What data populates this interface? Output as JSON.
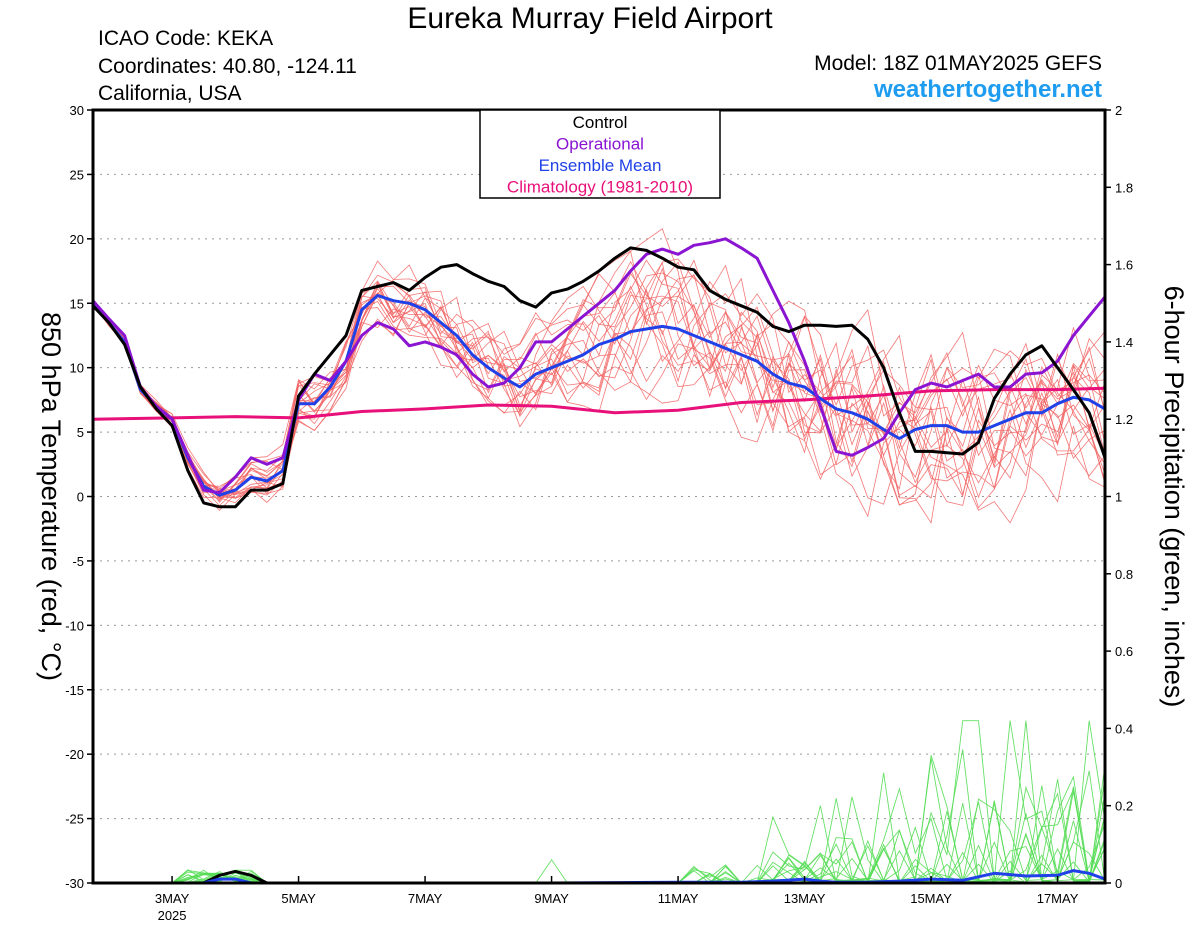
{
  "header": {
    "title": "Eureka Murray Field Airport",
    "icao": "ICAO Code: KEKA",
    "coordinates": "Coordinates: 40.80, -124.11",
    "region": "California, USA",
    "model": "Model: 18Z 01MAY2025 GEFS",
    "site": "weathertogether.net"
  },
  "chart_data": {
    "type": "line",
    "x_unit": "days since 00Z 01MAY2025",
    "x_range": [
      1.75,
      17.75
    ],
    "ylim_left": [
      -30,
      30
    ],
    "ylim_right": [
      0,
      2
    ],
    "ylabel_left": "850 hPa Temperature (red, °C)",
    "ylabel_right": "6-hour Precipitation (green, inches)",
    "grid": true,
    "legend_position": "top-center",
    "left_ticks": [
      "30",
      "25",
      "20",
      "15",
      "10",
      "5",
      "0",
      "-5",
      "-10",
      "-15",
      "-20",
      "-25",
      "-30"
    ],
    "right_ticks": [
      "2",
      "1.8",
      "1.6",
      "1.4",
      "1.2",
      "1",
      "0.8",
      "0.6",
      "0.4",
      "0.2",
      "0"
    ],
    "x_ticks": [
      {
        "day": 3,
        "label": "3MAY",
        "sublabel": "2025"
      },
      {
        "day": 5,
        "label": "5MAY",
        "sublabel": ""
      },
      {
        "day": 7,
        "label": "7MAY",
        "sublabel": ""
      },
      {
        "day": 9,
        "label": "9MAY",
        "sublabel": ""
      },
      {
        "day": 11,
        "label": "11MAY",
        "sublabel": ""
      },
      {
        "day": 13,
        "label": "13MAY",
        "sublabel": ""
      },
      {
        "day": 15,
        "label": "15MAY",
        "sublabel": ""
      },
      {
        "day": 17,
        "label": "17MAY",
        "sublabel": ""
      }
    ],
    "legend": [
      {
        "label": "Control",
        "color": "#000000"
      },
      {
        "label": "Operational",
        "color": "#8a14d2"
      },
      {
        "label": "Ensemble Mean",
        "color": "#2040e8"
      },
      {
        "label": "Climatology (1981-2010)",
        "color": "#e8107a"
      }
    ],
    "colors": {
      "members": "#f26060",
      "precip_members": "#55dd55"
    },
    "series": [
      {
        "name": "Control",
        "color": "#000000",
        "x": [
          1.75,
          2.0,
          2.25,
          2.5,
          2.75,
          3.0,
          3.25,
          3.5,
          3.75,
          4.0,
          4.25,
          4.5,
          4.75,
          5.0,
          5.25,
          5.5,
          5.75,
          6.0,
          6.25,
          6.5,
          6.75,
          7.0,
          7.25,
          7.5,
          7.75,
          8.0,
          8.25,
          8.5,
          8.75,
          9.0,
          9.25,
          9.5,
          9.75,
          10.0,
          10.25,
          10.5,
          10.75,
          11.0,
          11.25,
          11.5,
          11.75,
          12.0,
          12.25,
          12.5,
          12.75,
          13.0,
          13.25,
          13.5,
          13.75,
          14.0,
          14.25,
          14.5,
          14.75,
          15.0,
          15.25,
          15.5,
          15.75,
          16.0,
          16.25,
          16.5,
          16.75,
          17.0,
          17.25,
          17.5,
          17.75
        ],
        "y": [
          14.8,
          13.5,
          11.8,
          8.5,
          6.8,
          5.5,
          2.0,
          -0.5,
          -0.8,
          -0.8,
          0.5,
          0.5,
          1.0,
          7.8,
          9.5,
          11.0,
          12.5,
          16.0,
          16.3,
          16.6,
          16.0,
          17.0,
          17.8,
          18.0,
          17.3,
          16.7,
          16.3,
          15.2,
          14.7,
          15.8,
          16.1,
          16.7,
          17.5,
          18.5,
          19.3,
          19.1,
          18.5,
          17.8,
          17.6,
          16.0,
          15.3,
          14.8,
          14.3,
          13.2,
          12.8,
          13.3,
          13.3,
          13.2,
          13.3,
          12.2,
          10.0,
          6.5,
          3.5,
          3.5,
          3.4,
          3.3,
          4.2,
          7.6,
          9.5,
          11.0,
          11.7,
          10.0,
          8.3,
          6.5,
          3.0
        ]
      },
      {
        "name": "Operational",
        "color": "#8a14d2",
        "x": [
          1.75,
          2.0,
          2.25,
          2.5,
          2.75,
          3.0,
          3.25,
          3.5,
          3.75,
          4.0,
          4.25,
          4.5,
          4.75,
          5.0,
          5.25,
          5.5,
          5.75,
          6.0,
          6.25,
          6.5,
          6.75,
          7.0,
          7.25,
          7.5,
          7.75,
          8.0,
          8.25,
          8.5,
          8.75,
          9.0,
          9.25,
          9.5,
          9.75,
          10.0,
          10.25,
          10.5,
          10.75,
          11.0,
          11.25,
          11.5,
          11.75,
          12.0,
          12.25,
          12.5,
          12.75,
          13.0,
          13.25,
          13.5,
          13.75,
          14.0,
          14.25,
          14.5,
          14.75,
          15.0,
          15.25,
          15.5,
          15.75,
          16.0,
          16.25,
          16.5,
          16.75,
          17.0,
          17.25,
          17.5,
          17.75
        ],
        "y": [
          15.2,
          13.8,
          12.5,
          8.5,
          7.0,
          6.0,
          3.2,
          0.5,
          0.3,
          1.5,
          3.0,
          2.5,
          3.0,
          7.5,
          9.5,
          9.0,
          10.5,
          12.5,
          13.5,
          13.0,
          11.7,
          12.0,
          11.6,
          11.0,
          9.5,
          8.5,
          8.8,
          10.0,
          12.0,
          12.0,
          13.0,
          14.0,
          15.0,
          16.0,
          17.5,
          18.8,
          19.2,
          18.8,
          19.5,
          19.7,
          20.0,
          19.3,
          18.5,
          16.0,
          13.5,
          10.5,
          7.0,
          3.5,
          3.2,
          3.8,
          4.5,
          6.5,
          8.3,
          8.8,
          8.5,
          9.0,
          9.5,
          8.5,
          8.5,
          9.5,
          9.6,
          10.5,
          12.5,
          14.0,
          15.5
        ]
      },
      {
        "name": "Ensemble Mean",
        "color": "#2040e8",
        "x": [
          1.75,
          2.0,
          2.25,
          2.5,
          2.75,
          3.0,
          3.25,
          3.5,
          3.75,
          4.0,
          4.25,
          4.5,
          4.75,
          5.0,
          5.25,
          5.5,
          5.75,
          6.0,
          6.25,
          6.5,
          6.75,
          7.0,
          7.25,
          7.5,
          7.75,
          8.0,
          8.25,
          8.5,
          8.75,
          9.0,
          9.25,
          9.5,
          9.75,
          10.0,
          10.25,
          10.5,
          10.75,
          11.0,
          11.25,
          11.5,
          11.75,
          12.0,
          12.25,
          12.5,
          12.75,
          13.0,
          13.25,
          13.5,
          13.75,
          14.0,
          14.25,
          14.5,
          14.75,
          15.0,
          15.25,
          15.5,
          15.75,
          16.0,
          16.25,
          16.5,
          16.75,
          17.0,
          17.25,
          17.5,
          17.75
        ],
        "y": [
          15.0,
          13.5,
          12.0,
          8.3,
          7.0,
          6.0,
          3.0,
          0.8,
          0.1,
          0.5,
          1.5,
          1.2,
          2.0,
          7.2,
          7.2,
          8.5,
          10.5,
          14.5,
          15.6,
          15.2,
          15.0,
          14.5,
          13.5,
          12.5,
          11.0,
          10.0,
          9.2,
          8.5,
          9.5,
          10.0,
          10.5,
          11.0,
          11.8,
          12.2,
          12.8,
          13.0,
          13.2,
          13.0,
          12.5,
          12.0,
          11.5,
          11.0,
          10.5,
          9.5,
          8.8,
          8.5,
          7.6,
          6.8,
          6.5,
          6.0,
          5.2,
          4.5,
          5.2,
          5.5,
          5.5,
          5.0,
          5.0,
          5.5,
          6.0,
          6.5,
          6.5,
          7.2,
          7.7,
          7.5,
          6.8
        ]
      },
      {
        "name": "Climatology (1981-2010)",
        "color": "#e8107a",
        "x": [
          1.75,
          3.0,
          4.0,
          5.0,
          6.0,
          7.0,
          8.0,
          9.0,
          10.0,
          11.0,
          12.0,
          13.0,
          14.0,
          15.0,
          16.0,
          17.0,
          17.75
        ],
        "y": [
          6.0,
          6.1,
          6.2,
          6.1,
          6.6,
          6.8,
          7.1,
          7.0,
          6.5,
          6.7,
          7.3,
          7.5,
          7.8,
          8.2,
          8.3,
          8.3,
          8.4
        ]
      },
      {
        "name": "Control",
        "axis": "right",
        "color": "#000000",
        "x": [
          1.75,
          3.5,
          3.75,
          4.0,
          4.25,
          4.5,
          17.75
        ],
        "y": [
          0,
          0,
          0.02,
          0.03,
          0.02,
          0,
          0
        ]
      },
      {
        "name": "Ensemble Mean",
        "axis": "right",
        "color": "#2040e8",
        "x": [
          1.75,
          3.5,
          3.75,
          4.0,
          4.25,
          9.0,
          11.0,
          12.0,
          12.5,
          13.0,
          13.25,
          13.5,
          14.0,
          14.5,
          15.0,
          15.5,
          16.0,
          16.5,
          17.0,
          17.25,
          17.5,
          17.75
        ],
        "y": [
          0,
          0,
          0.01,
          0.01,
          0,
          0,
          0.002,
          0.002,
          0.005,
          0.01,
          0.005,
          0.002,
          0.002,
          0.005,
          0.01,
          0.007,
          0.025,
          0.018,
          0.02,
          0.032,
          0.025,
          0.01
        ]
      }
    ]
  }
}
